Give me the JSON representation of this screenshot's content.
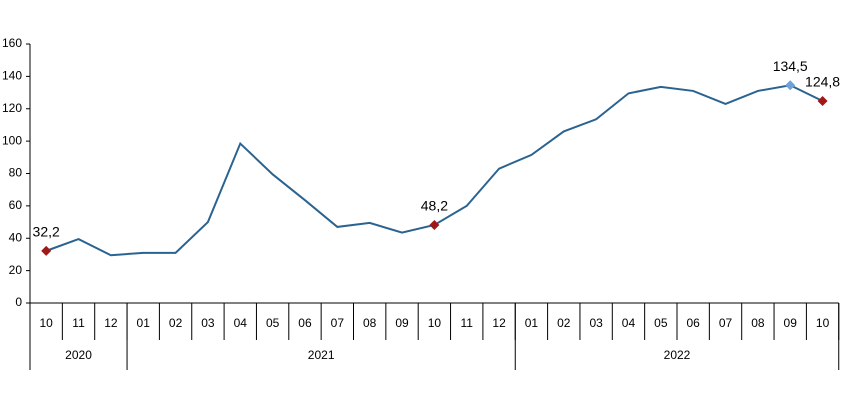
{
  "chart_data": {
    "type": "line",
    "categories": [
      "10",
      "11",
      "12",
      "01",
      "02",
      "03",
      "04",
      "05",
      "06",
      "07",
      "08",
      "09",
      "10",
      "11",
      "12",
      "01",
      "02",
      "03",
      "04",
      "05",
      "06",
      "07",
      "08",
      "09",
      "10"
    ],
    "year_groups": [
      {
        "label": "2020",
        "span": 3
      },
      {
        "label": "2021",
        "span": 12
      },
      {
        "label": "2022",
        "span": 10
      }
    ],
    "series": [
      {
        "color": "#2b6390",
        "values": [
          32.2,
          39.5,
          29.5,
          31,
          31,
          50,
          98.5,
          79.5,
          63.5,
          47,
          49.5,
          43.5,
          48.2,
          60,
          83,
          91.5,
          106,
          113.5,
          129.5,
          133.5,
          131,
          123,
          131,
          134.5,
          124.8
        ],
        "value_labels": [
          "32,2",
          null,
          null,
          null,
          null,
          null,
          null,
          null,
          null,
          null,
          null,
          null,
          "48,2",
          null,
          null,
          null,
          null,
          null,
          null,
          null,
          null,
          null,
          null,
          "134,5",
          "124,8"
        ],
        "point_colors": [
          "#a01818",
          null,
          null,
          null,
          null,
          null,
          null,
          null,
          null,
          null,
          null,
          null,
          "#a01818",
          null,
          null,
          null,
          null,
          null,
          null,
          null,
          null,
          null,
          null,
          "#6fa3d8",
          "#a01818"
        ]
      }
    ],
    "ylim": [
      0,
      160
    ],
    "yticks": [
      0,
      20,
      40,
      60,
      80,
      100,
      120,
      140,
      160
    ]
  }
}
